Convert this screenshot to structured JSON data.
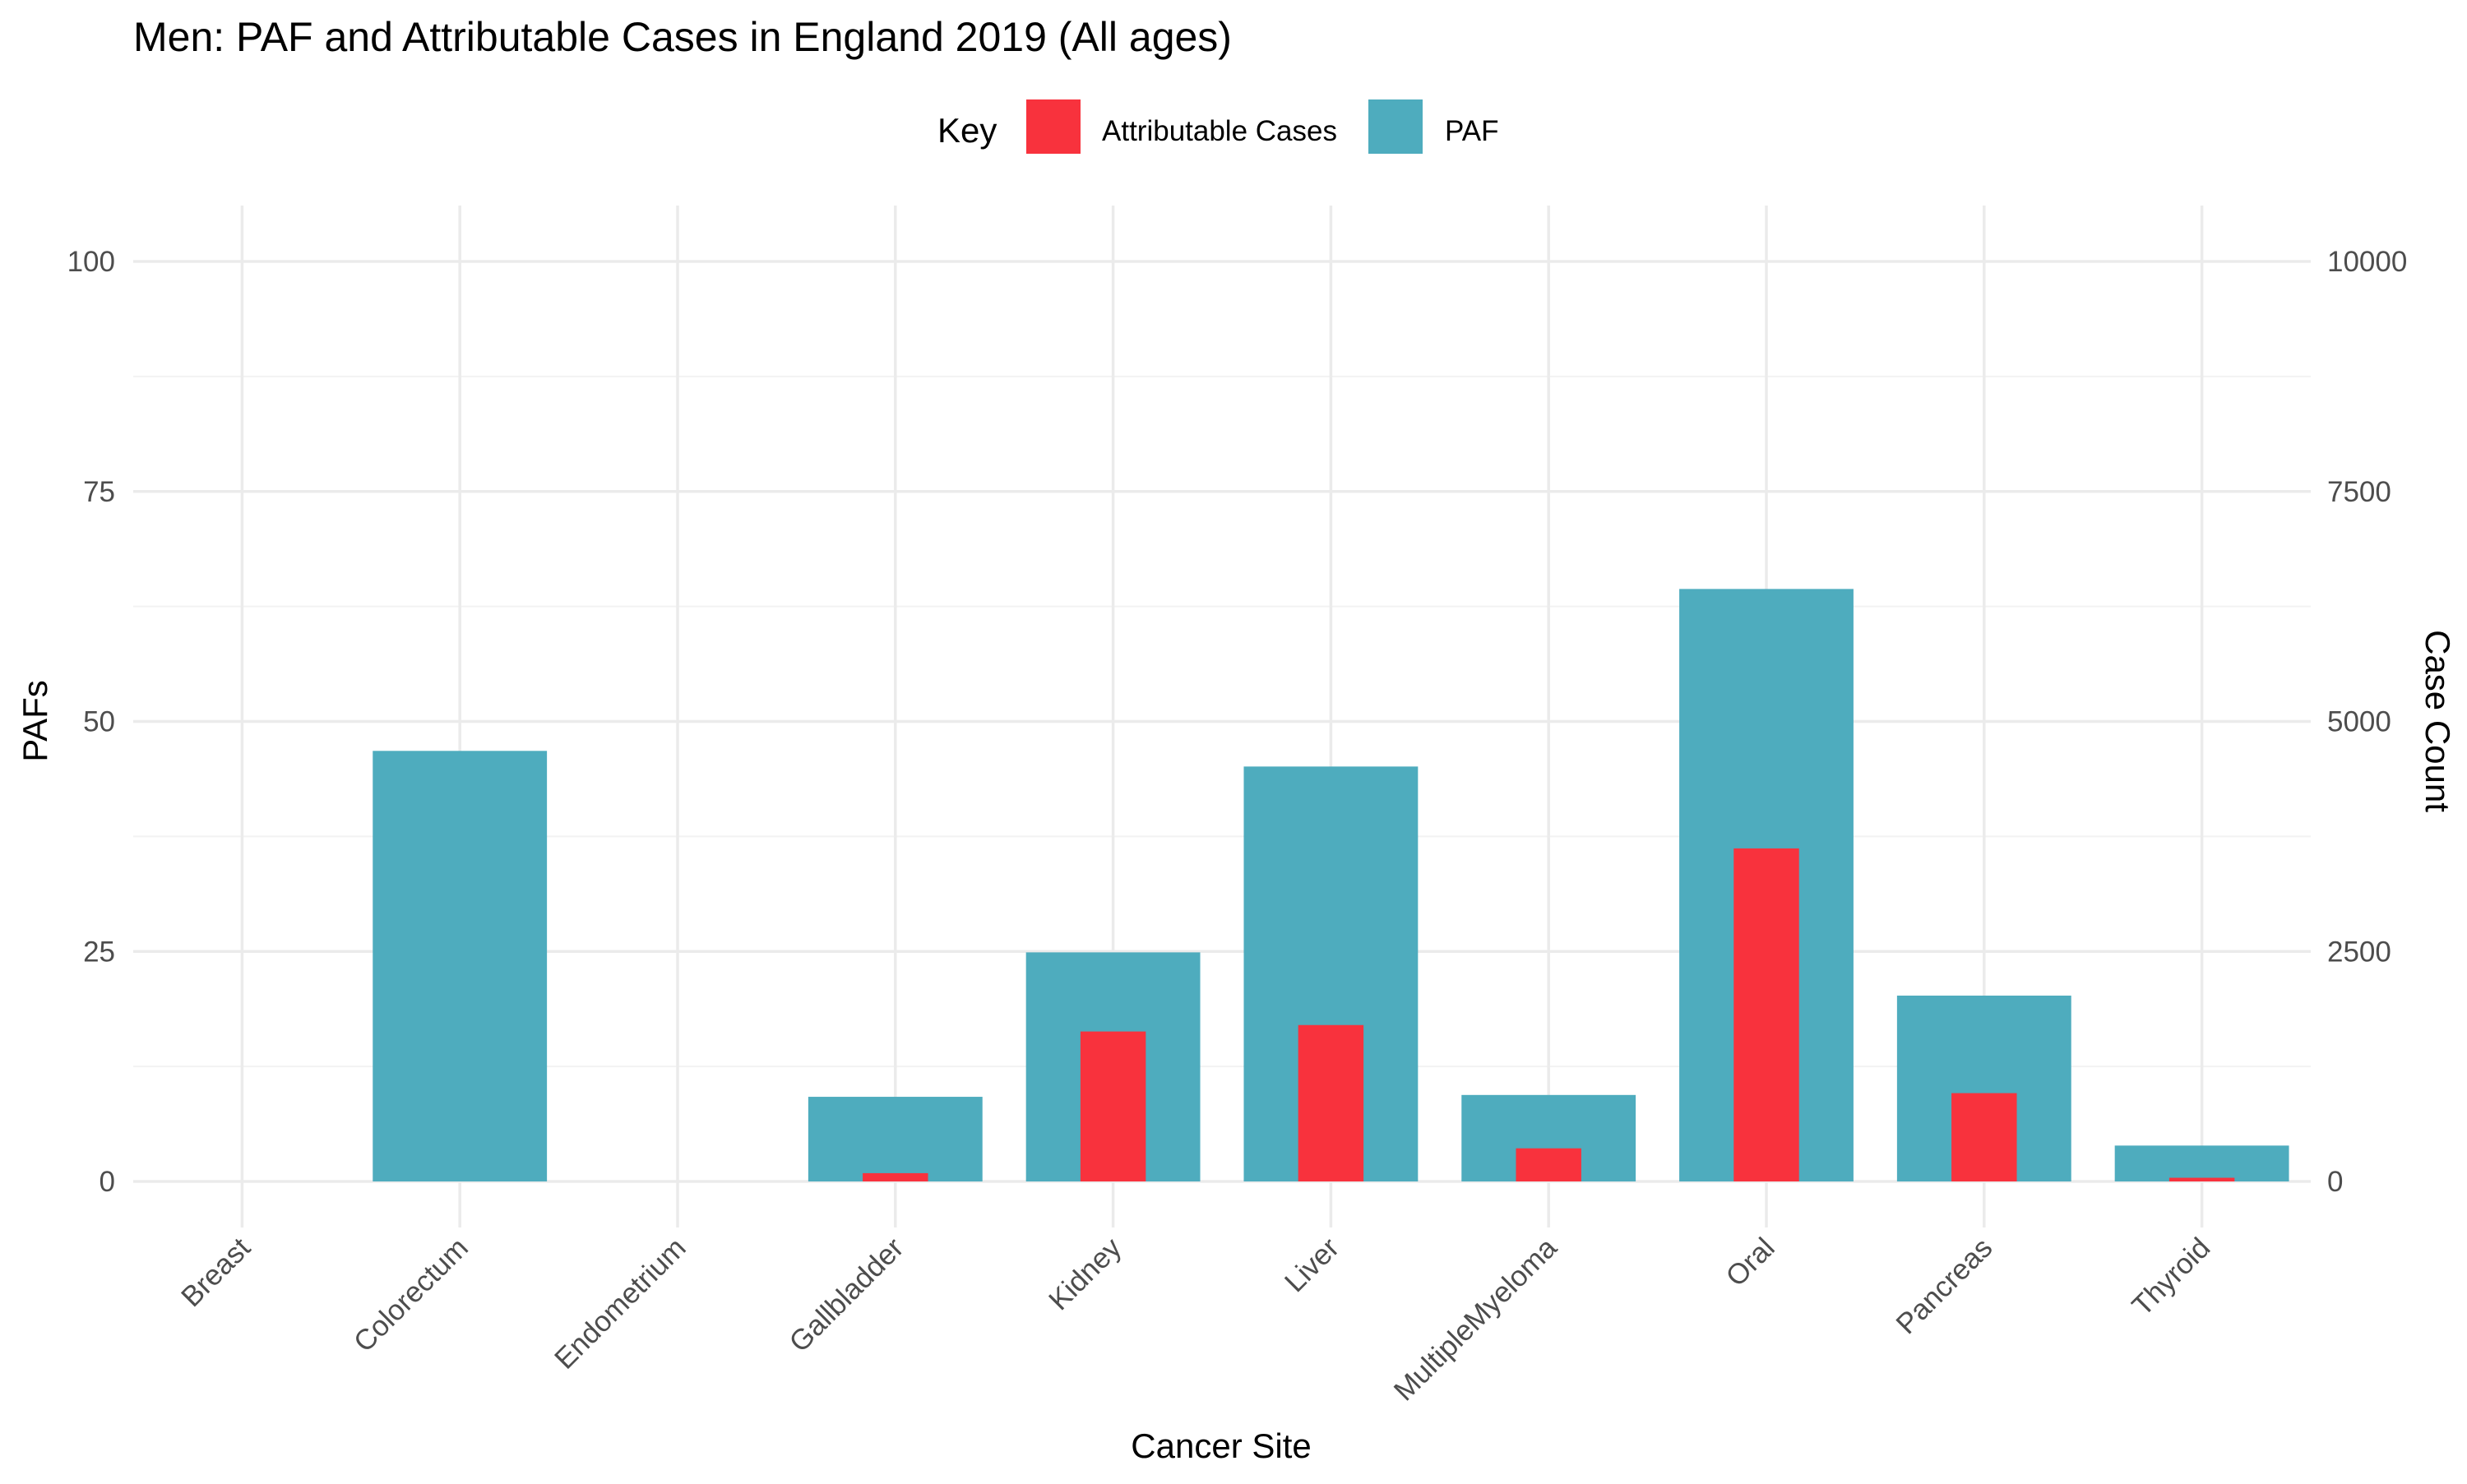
{
  "chart_data": {
    "type": "bar",
    "title": "Men: PAF and Attributable Cases in England 2019 (All ages)",
    "xlabel": "Cancer Site",
    "ylabel": "PAFs",
    "y2label": "Case Count",
    "ylim": [
      0,
      100
    ],
    "y2lim": [
      0,
      10000
    ],
    "yticks": [
      "0",
      "25",
      "50",
      "75",
      "100"
    ],
    "y2ticks": [
      "0",
      "2500",
      "5000",
      "7500",
      "10000"
    ],
    "grid": true,
    "legend": {
      "title": "Key",
      "placement": "top"
    },
    "categories": [
      "Breast",
      "Colorectum",
      "Endometrium",
      "Gallbladder",
      "Kidney",
      "Liver",
      "MultipleMyeloma",
      "Oral",
      "Pancreas",
      "Thyroid"
    ],
    "series": [
      {
        "name": "Attributable Cases",
        "axis": "right",
        "color": "#f8323d",
        "values": [
          0,
          0,
          0,
          90,
          1630,
          1700,
          360,
          3620,
          960,
          40
        ]
      },
      {
        "name": "PAF",
        "axis": "left",
        "color": "#4eacbe",
        "values": [
          0,
          46.8,
          0,
          9.2,
          24.9,
          45.1,
          9.4,
          64.4,
          20.2,
          3.9
        ]
      }
    ]
  }
}
